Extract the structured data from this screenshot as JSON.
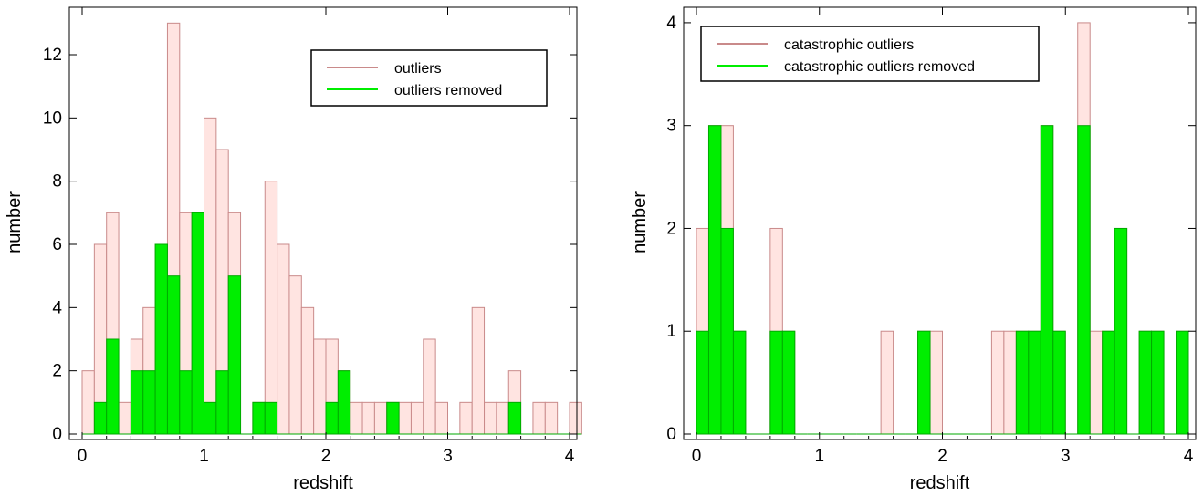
{
  "colors": {
    "outliers_fill": "#ffe4e1",
    "outliers_stroke": "#c98a8a",
    "removed_fill": "#00ee00",
    "removed_stroke": "#00aa00",
    "axis": "#000000"
  },
  "chart_data": [
    {
      "type": "bar",
      "xlabel": "redshift",
      "ylabel": "number",
      "xlim": [
        0,
        4
      ],
      "ylim": [
        0,
        13.5
      ],
      "xticks": [
        "0",
        "1",
        "2",
        "3",
        "4"
      ],
      "xtick_values": [
        0,
        1,
        2,
        3,
        4
      ],
      "yticks": [
        "0",
        "2",
        "4",
        "6",
        "8",
        "10",
        "12"
      ],
      "ytick_values": [
        0,
        2,
        4,
        6,
        8,
        10,
        12
      ],
      "bin_width": 0.1,
      "bin_start": 0,
      "legend_position": "top-right",
      "series": [
        {
          "name": "outliers",
          "values": [
            2,
            6,
            7,
            1,
            3,
            4,
            6,
            13,
            7,
            7,
            10,
            9,
            7,
            0,
            1,
            8,
            6,
            5,
            4,
            3,
            3,
            2,
            1,
            1,
            1,
            1,
            1,
            1,
            3,
            1,
            0,
            1,
            4,
            1,
            1,
            2,
            0,
            1,
            1,
            0,
            1
          ]
        },
        {
          "name": "outliers removed",
          "values": [
            0,
            1,
            3,
            0,
            2,
            2,
            6,
            5,
            2,
            7,
            1,
            2,
            5,
            0,
            1,
            1,
            0,
            0,
            0,
            0,
            1,
            2,
            0,
            0,
            0,
            1,
            0,
            0,
            0,
            0,
            0,
            0,
            0,
            0,
            0,
            1,
            0,
            0,
            0,
            0,
            0
          ]
        }
      ]
    },
    {
      "type": "bar",
      "xlabel": "redshift",
      "ylabel": "number",
      "xlim": [
        0,
        4
      ],
      "ylim": [
        0,
        4.15
      ],
      "xticks": [
        "0",
        "1",
        "2",
        "3",
        "4"
      ],
      "xtick_values": [
        0,
        1,
        2,
        3,
        4
      ],
      "yticks": [
        "0",
        "1",
        "2",
        "3",
        "4"
      ],
      "ytick_values": [
        0,
        1,
        2,
        3,
        4
      ],
      "bin_width": 0.1,
      "bin_start": 0,
      "legend_position": "top-left",
      "series": [
        {
          "name": "catastrophic outliers",
          "values": [
            2,
            3,
            3,
            1,
            0,
            0,
            2,
            1,
            0,
            0,
            0,
            0,
            0,
            0,
            0,
            1,
            0,
            0,
            1,
            1,
            0,
            0,
            0,
            0,
            1,
            1,
            1,
            1,
            3,
            1,
            0,
            4,
            1,
            1,
            2,
            0,
            1,
            1,
            0,
            1
          ]
        },
        {
          "name": "catastrophic outliers removed",
          "values": [
            1,
            3,
            2,
            1,
            0,
            0,
            1,
            1,
            0,
            0,
            0,
            0,
            0,
            0,
            0,
            0,
            0,
            0,
            1,
            0,
            0,
            0,
            0,
            0,
            0,
            0,
            1,
            1,
            3,
            1,
            0,
            3,
            0,
            1,
            2,
            0,
            1,
            1,
            0,
            1
          ]
        }
      ]
    }
  ]
}
